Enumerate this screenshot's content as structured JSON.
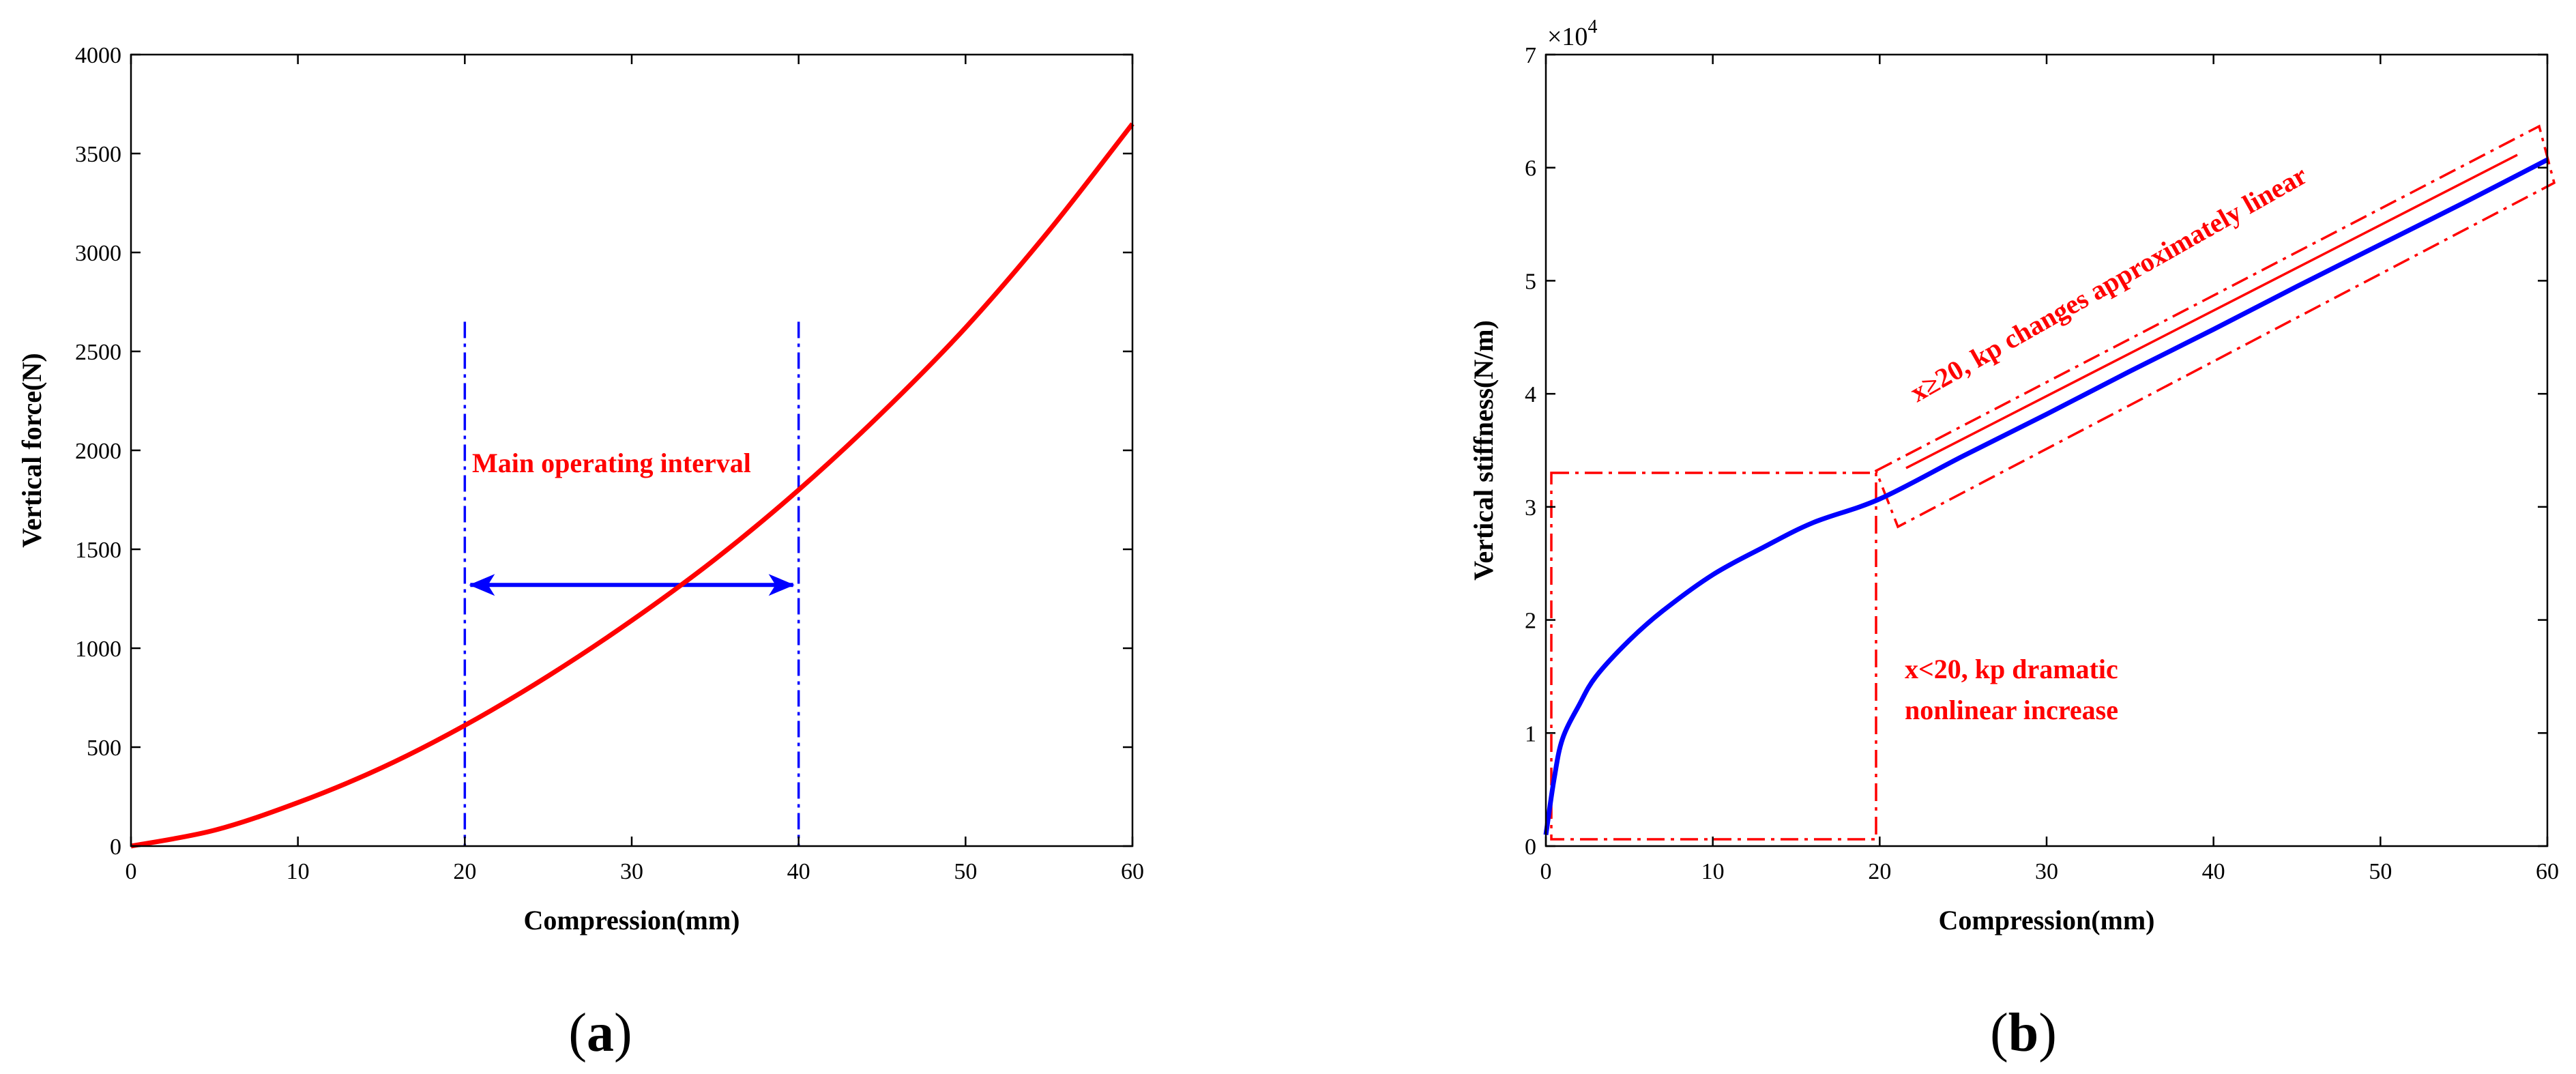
{
  "chart_data": [
    {
      "type": "line",
      "panel_label_text": "a",
      "xlabel": "Compression(mm)",
      "ylabel": "Vertical force(N)",
      "xlim": [
        0,
        60
      ],
      "ylim": [
        0,
        4000
      ],
      "xticks": [
        0,
        10,
        20,
        30,
        40,
        50,
        60
      ],
      "yticks": [
        0,
        500,
        1000,
        1500,
        2000,
        2500,
        3000,
        3500,
        4000
      ],
      "grid": false,
      "series": [
        {
          "color": "#ff0000",
          "x": [
            0,
            5,
            10,
            15,
            20,
            25,
            30,
            35,
            40,
            45,
            50,
            55,
            60
          ],
          "y": [
            0,
            80,
            220,
            395,
            610,
            860,
            1140,
            1450,
            1800,
            2190,
            2620,
            3110,
            3650
          ]
        }
      ],
      "annotations": {
        "interval_text": "Main operating interval",
        "interval_x": [
          20,
          40
        ],
        "arrow_y": 1320,
        "line_top_y": 2650,
        "line_color": "#0000ff",
        "text_color": "#ff0000"
      }
    },
    {
      "type": "line",
      "panel_label_text": "b",
      "xlabel": "Compression(mm)",
      "ylabel": "Vertical stiffness(N/m)",
      "y_multiplier": "×10",
      "y_multiplier_exp": "4",
      "xlim": [
        0,
        60
      ],
      "ylim": [
        0,
        7
      ],
      "xticks": [
        0,
        10,
        20,
        30,
        40,
        50,
        60
      ],
      "yticks": [
        0,
        1,
        2,
        3,
        4,
        5,
        6,
        7
      ],
      "grid": false,
      "series": [
        {
          "color": "#0000ff",
          "x": [
            0,
            0.5,
            1,
            2,
            3,
            5,
            7,
            10,
            13,
            16,
            20,
            25,
            30,
            35,
            40,
            45,
            50,
            55,
            60
          ],
          "y": [
            0.1,
            0.6,
            0.95,
            1.25,
            1.5,
            1.82,
            2.08,
            2.4,
            2.64,
            2.86,
            3.07,
            3.45,
            3.82,
            4.2,
            4.57,
            4.95,
            5.32,
            5.69,
            6.07
          ]
        }
      ],
      "annotations": {
        "linear_text": "x≥20, kp changes approximately linear",
        "nonlinear_text_1": "x<20, kp dramatic",
        "nonlinear_text_2": "nonlinear increase",
        "box_color": "#ff0000"
      }
    }
  ]
}
